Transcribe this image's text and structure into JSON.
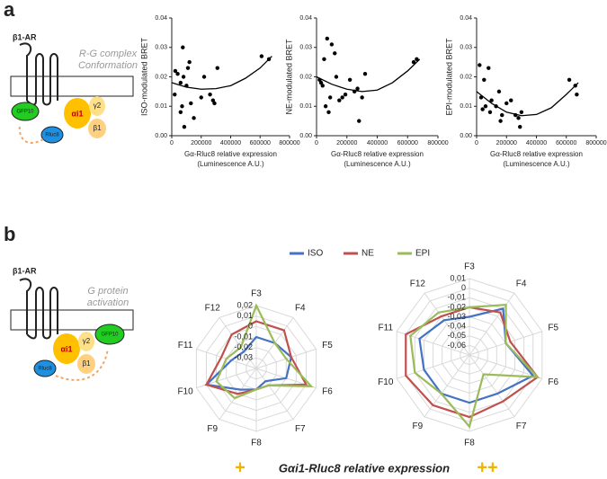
{
  "figure": {
    "panel_a": "a",
    "panel_b": "b",
    "bottom_low": "+",
    "bottom_label": "Gαi1-Rluc8 relative expression",
    "bottom_high": "++"
  },
  "diagram_a": {
    "receptor": "β1-AR",
    "caption": [
      "R-G complex",
      "Conformation"
    ],
    "gfp": "GFP10",
    "alpha": "αi1",
    "gamma": "γ2",
    "beta": "β1",
    "rluc": "Rluc8"
  },
  "diagram_b": {
    "receptor": "β1-AR",
    "caption": [
      "G protein",
      "activation"
    ],
    "gfp": "GFP10",
    "alpha": "αi1",
    "gamma": "γ2",
    "beta": "β1",
    "rluc": "Rluc8"
  },
  "chart_data": [
    {
      "type": "scatter",
      "ylabel": "ISO-modulated BRET",
      "xlabel": [
        "Gα-Rluc8 relative expression",
        "(Luminescence A.U.)"
      ],
      "color": "#000000",
      "x": [
        24000,
        40000,
        20000,
        60000,
        75000,
        80000,
        100000,
        110000,
        120000,
        70000,
        60000,
        85000,
        130000,
        150000,
        200000,
        220000,
        260000,
        280000,
        290000,
        310000,
        610000,
        660000
      ],
      "values": [
        0.022,
        0.021,
        0.014,
        0.018,
        0.03,
        0.02,
        0.017,
        0.023,
        0.025,
        0.01,
        0.008,
        0.003,
        0.011,
        0.006,
        0.013,
        0.02,
        0.014,
        0.012,
        0.011,
        0.023,
        0.027,
        0.026
      ],
      "curve": {
        "x": [
          0,
          100000,
          200000,
          300000,
          400000,
          500000,
          600000,
          680000
        ],
        "values": [
          0.018,
          0.0165,
          0.0158,
          0.016,
          0.017,
          0.0195,
          0.023,
          0.027
        ]
      },
      "xlim": [
        0,
        800000
      ],
      "xticks": [
        0,
        200000,
        400000,
        600000,
        800000
      ],
      "ylim": [
        0,
        0.04
      ],
      "yticks": [
        {
          "value": 0,
          "label": "0.00"
        },
        {
          "value": 0.01,
          "label": "0.01"
        },
        {
          "value": 0.02,
          "label": "0.02"
        },
        {
          "value": 0.03,
          "label": "0.03"
        },
        {
          "value": 0.04,
          "label": "0.04"
        }
      ]
    },
    {
      "type": "scatter",
      "ylabel": "NE-modulated BRET",
      "xlabel": [
        "Gα-Rluc8 relative expression",
        "(Luminescence A.U.)"
      ],
      "color": "#000000",
      "x": [
        20000,
        30000,
        40000,
        50000,
        70000,
        60000,
        80000,
        90000,
        100000,
        120000,
        130000,
        150000,
        170000,
        190000,
        220000,
        250000,
        270000,
        280000,
        300000,
        320000,
        640000,
        660000
      ],
      "values": [
        0.019,
        0.018,
        0.017,
        0.026,
        0.033,
        0.01,
        0.008,
        0.013,
        0.031,
        0.028,
        0.02,
        0.012,
        0.013,
        0.014,
        0.019,
        0.015,
        0.016,
        0.005,
        0.013,
        0.021,
        0.025,
        0.026
      ],
      "curve": {
        "x": [
          0,
          100000,
          200000,
          300000,
          400000,
          500000,
          600000,
          680000
        ],
        "values": [
          0.02,
          0.0175,
          0.0158,
          0.015,
          0.0155,
          0.018,
          0.022,
          0.026
        ]
      },
      "xlim": [
        0,
        800000
      ],
      "xticks": [
        0,
        200000,
        400000,
        600000,
        800000
      ],
      "ylim": [
        0,
        0.04
      ],
      "yticks": [
        {
          "value": 0,
          "label": "0.00"
        },
        {
          "value": 0.01,
          "label": "0.01"
        },
        {
          "value": 0.02,
          "label": "0.02"
        },
        {
          "value": 0.03,
          "label": "0.03"
        },
        {
          "value": 0.04,
          "label": "0.04"
        }
      ]
    },
    {
      "type": "scatter",
      "ylabel": "EPI-modulated BRET",
      "xlabel": [
        "Gα-Rluc8 relative expression",
        "(Luminescence A.U.)"
      ],
      "color": "#000000",
      "x": [
        20000,
        30000,
        40000,
        50000,
        60000,
        80000,
        90000,
        100000,
        130000,
        150000,
        160000,
        170000,
        200000,
        230000,
        260000,
        280000,
        290000,
        300000,
        620000,
        660000,
        670000
      ],
      "values": [
        0.024,
        0.013,
        0.009,
        0.019,
        0.01,
        0.023,
        0.008,
        0.012,
        0.01,
        0.015,
        0.005,
        0.007,
        0.011,
        0.012,
        0.007,
        0.006,
        0.003,
        0.008,
        0.019,
        0.017,
        0.014
      ],
      "curve": {
        "x": [
          0,
          100000,
          200000,
          300000,
          400000,
          500000,
          600000,
          680000
        ],
        "values": [
          0.015,
          0.011,
          0.008,
          0.0068,
          0.0072,
          0.0095,
          0.014,
          0.018
        ]
      },
      "xlim": [
        0,
        800000
      ],
      "xticks": [
        0,
        200000,
        400000,
        600000,
        800000
      ],
      "ylim": [
        0,
        0.04
      ],
      "yticks": [
        {
          "value": 0,
          "label": "0.00"
        },
        {
          "value": 0.01,
          "label": "0.01"
        },
        {
          "value": 0.02,
          "label": "0.02"
        },
        {
          "value": 0.03,
          "label": "0.03"
        },
        {
          "value": 0.04,
          "label": "0.04"
        }
      ]
    },
    {
      "type": "radar",
      "legend": "top",
      "categories": [
        "F3",
        "F4",
        "F5",
        "F6",
        "F7",
        "F8",
        "F9",
        "F10",
        "F11",
        "F12"
      ],
      "rlim": [
        -0.04,
        0.02
      ],
      "rticks": [
        {
          "value": 0.02,
          "label": "0,02"
        },
        {
          "value": 0.01,
          "label": "0,01"
        },
        0,
        {
          "value": -0.01,
          "label": "-0,01"
        },
        {
          "value": -0.02,
          "label": "-0,02"
        },
        {
          "value": -0.03,
          "label": "-0,03"
        }
      ],
      "series": [
        {
          "name": "ISO",
          "color": "#4472c4",
          "values": [
            -0.01,
            -0.01,
            -0.005,
            -0.01,
            -0.025,
            -0.02,
            -0.015,
            0.01,
            -0.015,
            -0.02
          ]
        },
        {
          "name": "NE",
          "color": "#c0504d",
          "values": [
            0.005,
            0.005,
            -0.005,
            0.01,
            -0.02,
            -0.02,
            -0.01,
            0.01,
            -0.005,
            0
          ]
        },
        {
          "name": "EPI",
          "color": "#9bbb59",
          "values": [
            0.02,
            -0.01,
            -0.01,
            0.015,
            -0.02,
            -0.02,
            -0.005,
            0,
            -0.01,
            -0.015
          ]
        }
      ]
    },
    {
      "type": "radar",
      "categories": [
        "F3",
        "F4",
        "F5",
        "F6",
        "F7",
        "F8",
        "F9",
        "F10",
        "F11",
        "F12"
      ],
      "rlim": [
        -0.07,
        0.01
      ],
      "rticks": [
        {
          "value": 0.01,
          "label": "0,01"
        },
        0,
        {
          "value": -0.01,
          "label": "-0,01"
        },
        {
          "value": -0.02,
          "label": "-0,02"
        },
        {
          "value": -0.03,
          "label": "-0,03"
        },
        {
          "value": -0.04,
          "label": "-0,04"
        },
        {
          "value": -0.05,
          "label": "-0,05"
        },
        {
          "value": -0.06,
          "label": "-0,06"
        }
      ],
      "series": [
        {
          "color": "#4472c4",
          "values": [
            -0.03,
            -0.01,
            -0.03,
            0,
            -0.02,
            -0.02,
            -0.02,
            -0.02,
            -0.015,
            -0.025
          ]
        },
        {
          "color": "#c0504d",
          "values": [
            -0.02,
            -0.015,
            -0.025,
            0.005,
            -0.01,
            -0.005,
            -0.005,
            0,
            0,
            -0.02
          ]
        },
        {
          "color": "#9bbb59",
          "values": [
            -0.02,
            -0.005,
            -0.03,
            0.005,
            -0.045,
            0.005,
            -0.02,
            -0.01,
            -0.005,
            -0.015
          ]
        }
      ]
    }
  ]
}
